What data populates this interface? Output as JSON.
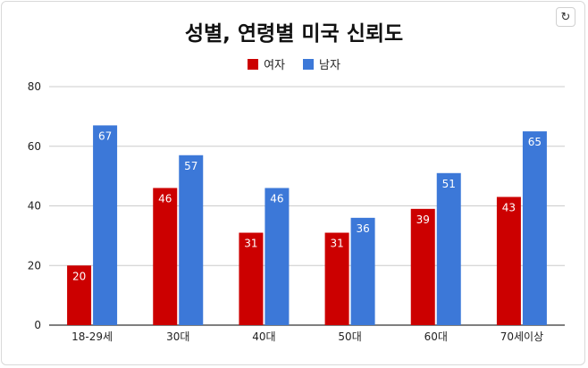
{
  "refresh_icon": "↻",
  "chart_data": {
    "type": "bar",
    "title": "성별, 연령별 미국 신뢰도",
    "xlabel": "",
    "ylabel": "",
    "categories": [
      "18-29세",
      "30대",
      "40대",
      "50대",
      "60대",
      "70세이상"
    ],
    "series": [
      {
        "name": "여자",
        "color": "#cc0000",
        "values": [
          20,
          46,
          31,
          31,
          39,
          43
        ]
      },
      {
        "name": "남자",
        "color": "#3c78d8",
        "values": [
          67,
          57,
          46,
          36,
          51,
          65
        ]
      }
    ],
    "ylim": [
      0,
      80
    ],
    "yticks": [
      0,
      20,
      40,
      60,
      80
    ],
    "grid": true,
    "legend_position": "top"
  }
}
